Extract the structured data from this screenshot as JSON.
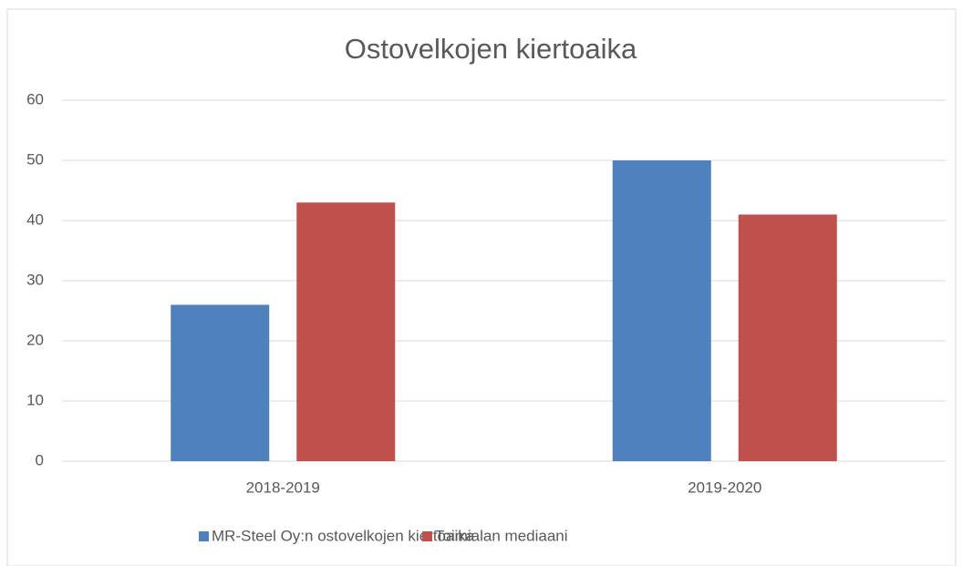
{
  "chart_data": {
    "type": "bar",
    "title": "Ostovelkojen kiertoaika",
    "categories": [
      "2018-2019",
      "2019-2020"
    ],
    "series": [
      {
        "name": "MR-Steel Oy:n ostovelkojen kiertoaika",
        "color": "#4f81bd",
        "values": [
          26,
          50
        ]
      },
      {
        "name": "Toimialan mediaani",
        "color": "#c0504d",
        "values": [
          43,
          41
        ]
      }
    ],
    "ylim": [
      0,
      60
    ],
    "yticks": [
      0,
      10,
      20,
      30,
      40,
      50,
      60
    ],
    "grid": true,
    "legend": "bottom"
  }
}
